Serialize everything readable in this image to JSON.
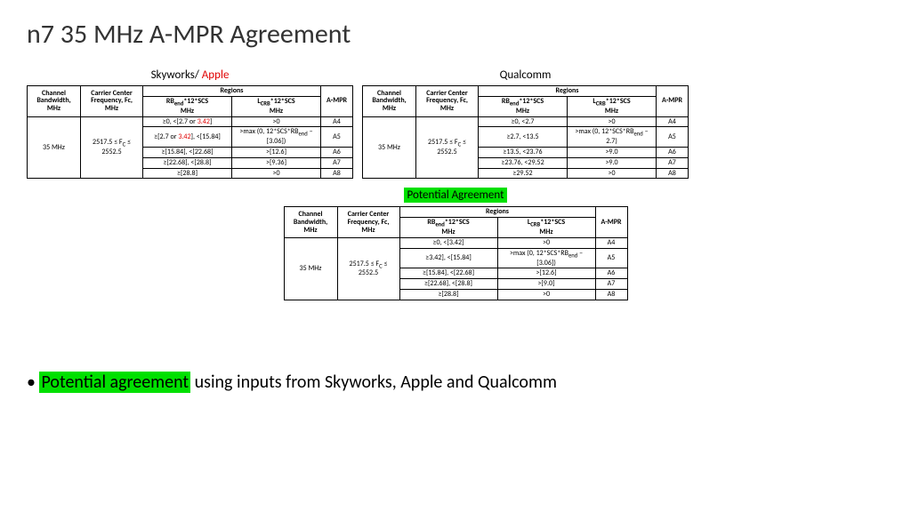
{
  "title": "n7 35 MHz A-MPR Agreement",
  "tables": {
    "skyworks": {
      "label_a": "Skyworks/ ",
      "label_b": "Apple",
      "headers": {
        "ch": "Channel Bandwidth, MHz",
        "fc": "Carrier Center Frequency, Fc, MHz",
        "regions": "Regions",
        "rb_html": "RB<sub>end</sub>*12*SCS",
        "lcrb_html": "L<sub>CRB</sub>*12*SCS",
        "unit": "MHz",
        "ampr": "A-MPR"
      },
      "bw": "35 MHz",
      "fc_html": "2517.5 ≤ F<sub>C</sub> ≤ 2552.5",
      "rows": [
        {
          "rb_html": "≥0, <[2.7 or <span class='red'>3.42</span>]",
          "lcrb_html": ">0",
          "ampr": "A4"
        },
        {
          "rb_html": "≥[2.7 or <span class='red'>3.42</span>], <[15.84]",
          "lcrb_html": ">max (0, 12*SCS*RB<sub>end</sub> – [3.06])",
          "ampr": "A5"
        },
        {
          "rb_html": "≥[15.84], <[22.68]",
          "lcrb_html": ">[12.6]",
          "ampr": "A6"
        },
        {
          "rb_html": "≥[22.68], <[28.8]",
          "lcrb_html": ">[9.36]",
          "ampr": "A7"
        },
        {
          "rb_html": "≥[28.8]",
          "lcrb_html": ">0",
          "ampr": "A8"
        }
      ]
    },
    "qualcomm": {
      "label": "Qualcomm",
      "bw": "35 MHz",
      "fc_html": "2517.5 ≤ F<sub>C</sub> ≤ 2552.5",
      "rows": [
        {
          "rb": "≥0, <2.7",
          "lcrb_html": ">0",
          "ampr": "A4"
        },
        {
          "rb": "≥2.7, <13.5",
          "lcrb_html": ">max (0, 12*SCS*RB<sub>end</sub> –2.7)",
          "ampr": "A5"
        },
        {
          "rb": "≥13.5, <23.76",
          "lcrb_html": ">9.0",
          "ampr": "A6"
        },
        {
          "rb": "≥23.76, <29.52",
          "lcrb_html": ">9.0",
          "ampr": "A7"
        },
        {
          "rb": "≥29.52",
          "lcrb_html": ">0",
          "ampr": "A8"
        }
      ]
    },
    "potential": {
      "label": "Potential Agreement",
      "bw": "35 MHz",
      "fc_html": "2517.5 ≤ F<sub>C</sub> ≤ 2552.5",
      "rows": [
        {
          "rb": "≥0, <[3.42]",
          "lcrb_html": ">0",
          "ampr": "A4"
        },
        {
          "rb": "≥3.42], <[15.84]",
          "lcrb_html": ">max (0, 12*SCS*RB<sub>end</sub> – [3.06])",
          "ampr": "A5"
        },
        {
          "rb": "≥[15.84], <[22.68]",
          "lcrb_html": ">[12.6]",
          "ampr": "A6"
        },
        {
          "rb": "≥[22.68], <[28.8]",
          "lcrb_html": ">[9.0]",
          "ampr": "A7"
        },
        {
          "rb": "≥[28.8]",
          "lcrb_html": ">0",
          "ampr": "A8"
        }
      ]
    }
  },
  "bullet": {
    "hl": "Potential agreement",
    "rest": " using inputs from Skyworks, Apple and Qualcomm"
  }
}
